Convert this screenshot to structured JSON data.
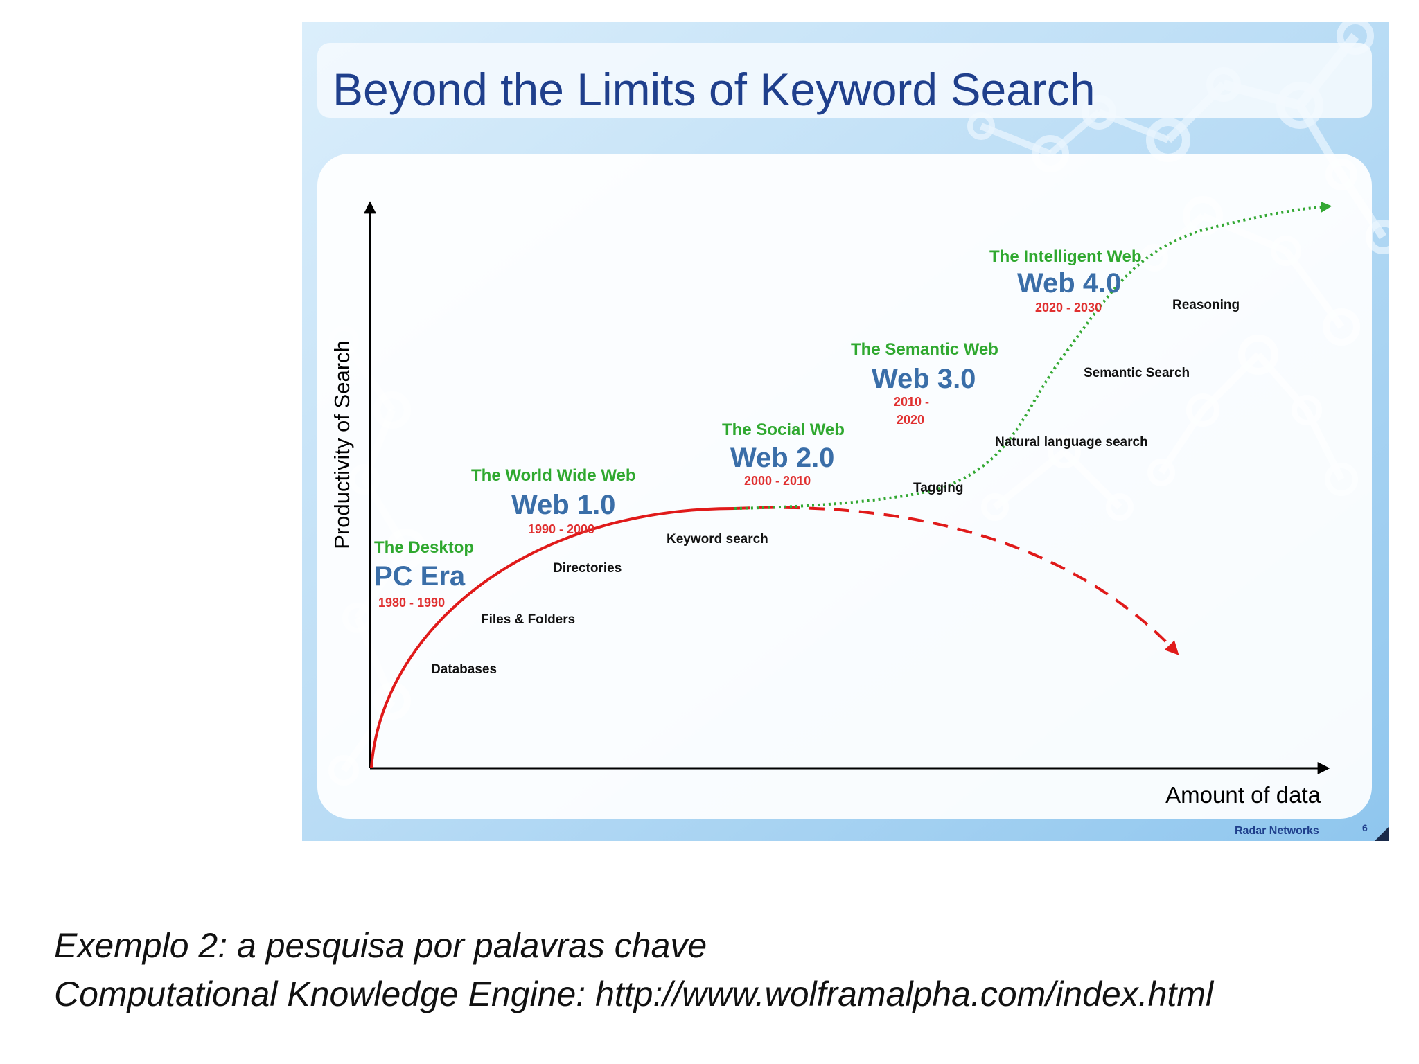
{
  "slide": {
    "title": "Beyond the Limits of Keyword Search",
    "footer": "Radar Networks",
    "page_number": "6"
  },
  "axes": {
    "y_label": "Productivity of Search",
    "x_label": "Amount of data"
  },
  "eras": [
    {
      "subtitle": "The Desktop",
      "name": "PC Era",
      "years": "1980 - 1990"
    },
    {
      "subtitle": "The World Wide Web",
      "name": "Web 1.0",
      "years": "1990 - 2000"
    },
    {
      "subtitle": "The Social Web",
      "name": "Web 2.0",
      "years": "2000 - 2010"
    },
    {
      "subtitle": "The Semantic Web",
      "name": "Web 3.0",
      "years_line1": "2010 -",
      "years_line2": "2020"
    },
    {
      "subtitle": "The Intelligent Web",
      "name": "Web 4.0",
      "years": "2020 - 2030"
    }
  ],
  "technologies": [
    "Databases",
    "Files & Folders",
    "Directories",
    "Keyword search",
    "Tagging",
    "Natural language search",
    "Semantic Search",
    "Reasoning"
  ],
  "colors": {
    "title": "#1f3f8c",
    "era_subtitle": "#2fa82f",
    "era_name": "#3a6ea8",
    "era_years": "#e03030",
    "keyword_curve": "#e01a1a",
    "semantic_curve": "#33a833",
    "slide_bg": "#c9e4f7"
  },
  "caption": {
    "line1": "Exemplo 2: a pesquisa por palavras chave",
    "line2": "Computational Knowledge Engine: http://www.wolframalpha.com/index.html"
  }
}
